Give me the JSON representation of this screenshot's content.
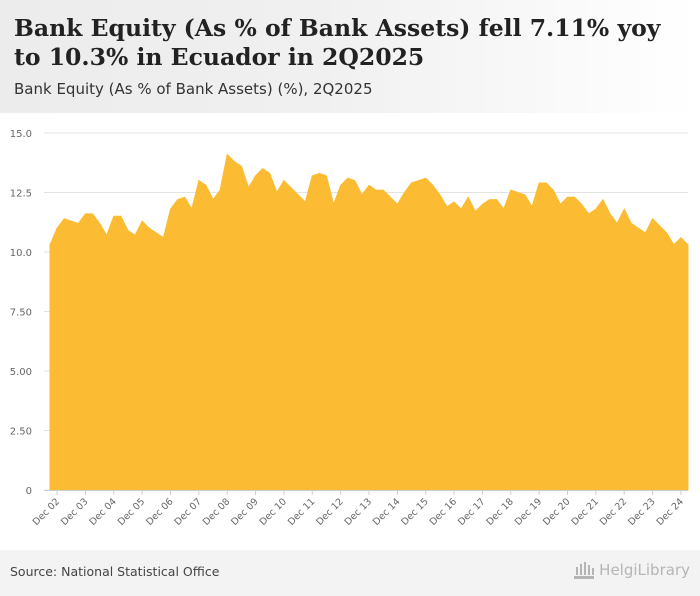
{
  "header": {
    "title": "Bank Equity (As % of Bank Assets) fell 7.11% yoy to 10.3% in Ecuador in 2Q2025",
    "subtitle": "Bank Equity (As % of Bank Assets) (%), 2Q2025"
  },
  "footer": {
    "source": "Source: National Statistical Office",
    "logo_text": "HelgiLibrary"
  },
  "colors": {
    "area": "#fbbc33",
    "grid": "#e3e3e3",
    "axis_text": "#666666"
  },
  "chart_data": {
    "type": "area",
    "title": "Bank Equity (As % of Bank Assets) fell 7.11% yoy to 10.3% in Ecuador in 2Q2025",
    "subtitle": "Bank Equity (As % of Bank Assets) (%), 2Q2025",
    "xlabel": "",
    "ylabel": "",
    "ylim": [
      0,
      15
    ],
    "y_ticks": [
      "0",
      "2.50",
      "5.00",
      "7.50",
      "10.0",
      "12.5",
      "15.0"
    ],
    "y_tick_values": [
      0,
      2.5,
      5,
      7.5,
      10,
      12.5,
      15
    ],
    "grid": true,
    "legend": "none",
    "x_labels": [
      "Dec 02",
      "Dec 03",
      "Dec 04",
      "Dec 05",
      "Dec 06",
      "Dec 07",
      "Dec 08",
      "Dec 09",
      "Dec 10",
      "Dec 11",
      "Dec 12",
      "Dec 13",
      "Dec 14",
      "Dec 15",
      "Dec 16",
      "Dec 17",
      "Dec 18",
      "Dec 19",
      "Dec 20",
      "Dec 21",
      "Dec 22",
      "Dec 23",
      "Dec 24"
    ],
    "series": [
      {
        "values": [
          10.3,
          11.0,
          11.4,
          11.3,
          11.2,
          11.6,
          11.6,
          11.2,
          10.7,
          11.5,
          11.5,
          10.9,
          10.7,
          11.3,
          11.0,
          10.8,
          10.6,
          11.8,
          12.2,
          12.3,
          11.8,
          13.0,
          12.8,
          12.2,
          12.6,
          14.1,
          13.8,
          13.6,
          12.7,
          13.2,
          13.5,
          13.3,
          12.5,
          13.0,
          12.7,
          12.4,
          12.1,
          13.2,
          13.3,
          13.2,
          12.0,
          12.8,
          13.1,
          13.0,
          12.4,
          12.8,
          12.6,
          12.6,
          12.3,
          12.0,
          12.5,
          12.9,
          13.0,
          13.1,
          12.8,
          12.4,
          11.9,
          12.1,
          11.8,
          12.3,
          11.7,
          12.0,
          12.2,
          12.2,
          11.8,
          12.6,
          12.5,
          12.4,
          11.9,
          12.9,
          12.9,
          12.6,
          12.0,
          12.3,
          12.3,
          12.0,
          11.6,
          11.8,
          12.2,
          11.6,
          11.2,
          11.8,
          11.2,
          11.0,
          10.8,
          11.4,
          11.1,
          10.8,
          10.3,
          10.6,
          10.3
        ]
      }
    ]
  }
}
